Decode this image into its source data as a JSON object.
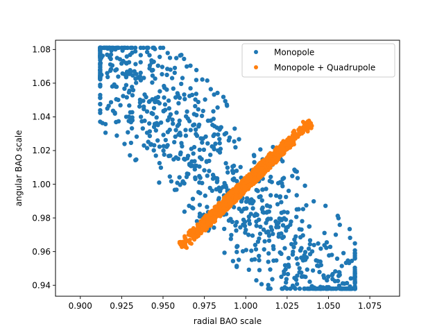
{
  "chart_data": {
    "type": "scatter",
    "title": "",
    "xlabel": "radial BAO scale",
    "ylabel": "angular BAO scale",
    "xlim": [
      0.885,
      1.093
    ],
    "ylim": [
      0.9335,
      1.0855
    ],
    "xticks": [
      "0.900",
      "0.925",
      "0.950",
      "0.975",
      "1.000",
      "1.025",
      "1.050",
      "1.075"
    ],
    "yticks": [
      "0.94",
      "0.96",
      "0.98",
      "1.00",
      "1.02",
      "1.04",
      "1.06",
      "1.08"
    ],
    "legend": {
      "position": "top-right"
    },
    "grid": false,
    "series": [
      {
        "name": "Monopole",
        "color": "#1f77b4",
        "distribution": {
          "center": [
            0.983,
            1.009
          ],
          "major_axis_direction": [
            0.55,
            -0.55
          ],
          "x_range": [
            0.912,
            1.066
          ],
          "y_range": [
            0.938,
            1.081
          ]
        }
      },
      {
        "name": "Monopole + Quadrupole",
        "color": "#ff7f0e",
        "distribution": {
          "center": [
            1.0,
            1.0
          ],
          "major_axis_direction": [
            0.039,
            0.037
          ],
          "x_range": [
            0.96,
            1.04
          ],
          "y_range": [
            0.962,
            1.038
          ]
        }
      }
    ]
  }
}
